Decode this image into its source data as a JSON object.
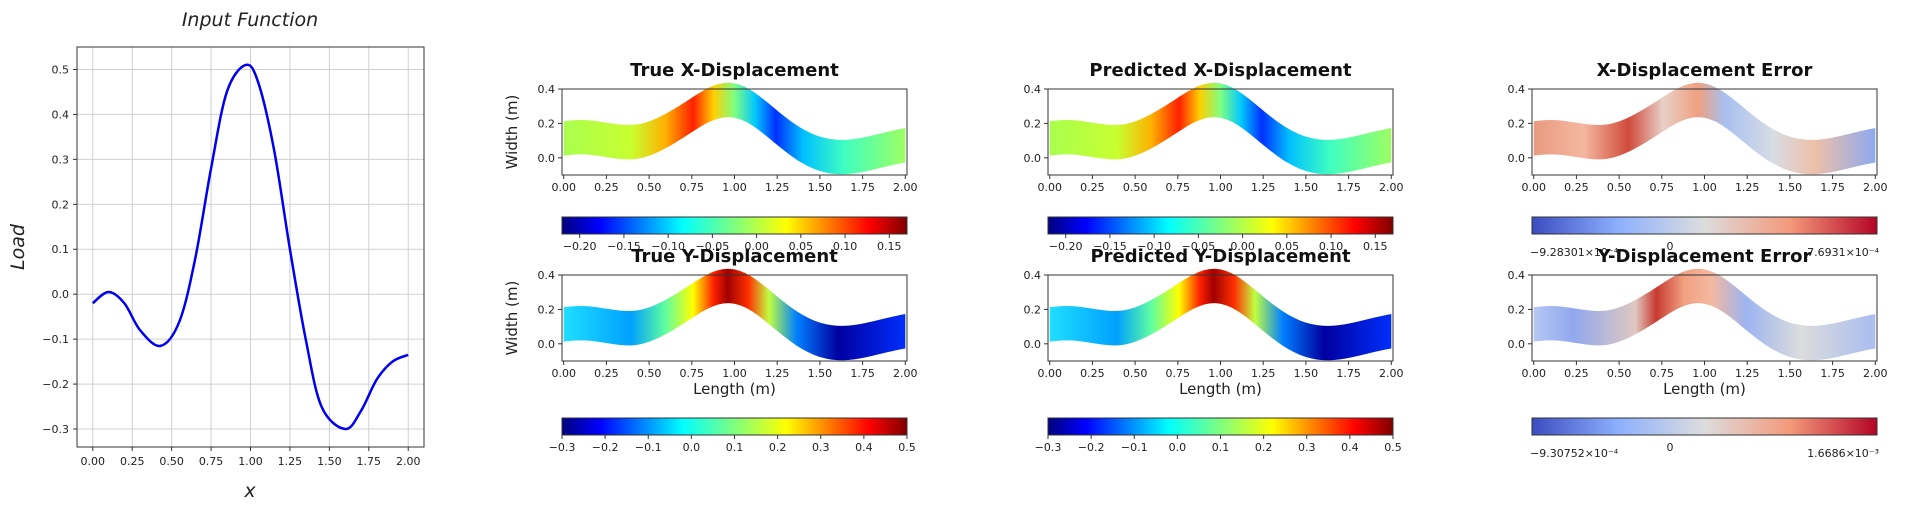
{
  "chart_data": [
    {
      "type": "line",
      "title": "Input Function",
      "xlabel": "x",
      "ylabel": "Load",
      "xlim": [
        -0.1,
        2.1
      ],
      "ylim": [
        -0.34,
        0.55
      ],
      "xticks": [
        "0.00",
        "0.25",
        "0.50",
        "0.75",
        "1.00",
        "1.25",
        "1.50",
        "1.75",
        "2.00"
      ],
      "yticks": [
        "0.5",
        "0.4",
        "0.3",
        "0.2",
        "0.1",
        "0.0",
        "−0.1",
        "−0.2",
        "−0.3"
      ],
      "grid": true,
      "color": "#0000ee",
      "x": [
        0.0,
        0.1,
        0.2,
        0.3,
        0.43,
        0.55,
        0.65,
        0.75,
        0.85,
        0.97,
        1.05,
        1.15,
        1.25,
        1.35,
        1.45,
        1.6,
        1.7,
        1.8,
        1.9,
        2.0
      ],
      "y": [
        -0.02,
        0.005,
        -0.02,
        -0.08,
        -0.115,
        -0.06,
        0.08,
        0.28,
        0.45,
        0.51,
        0.47,
        0.32,
        0.1,
        -0.1,
        -0.25,
        -0.3,
        -0.26,
        -0.19,
        -0.15,
        -0.135
      ]
    },
    {
      "type": "heatmap",
      "title": "True X-Displacement",
      "ylabel": "Width (m)",
      "xticks": [
        "0.00",
        "0.25",
        "0.50",
        "0.75",
        "1.00",
        "1.25",
        "1.50",
        "1.75",
        "2.00"
      ],
      "yticks": [
        "0.4",
        "0.2",
        "0.0"
      ],
      "colormap": "jet",
      "colorbar": {
        "min": -0.22,
        "max": 0.17,
        "ticks": [
          "−0.20",
          "−0.15",
          "−0.10",
          "−0.05",
          "0.00",
          "0.05",
          "0.10",
          "0.15"
        ]
      }
    },
    {
      "type": "heatmap",
      "title": "Predicted X-Displacement",
      "xticks": [
        "0.00",
        "0.25",
        "0.50",
        "0.75",
        "1.00",
        "1.25",
        "1.50",
        "1.75",
        "2.00"
      ],
      "yticks": [
        "0.4",
        "0.2",
        "0.0"
      ],
      "colormap": "jet",
      "colorbar": {
        "min": -0.22,
        "max": 0.17,
        "ticks": [
          "−0.20",
          "−0.15",
          "−0.10",
          "−0.05",
          "0.00",
          "0.05",
          "0.10",
          "0.15"
        ]
      }
    },
    {
      "type": "heatmap",
      "title": "X-Displacement Error",
      "xticks": [
        "0.00",
        "0.25",
        "0.50",
        "0.75",
        "1.00",
        "1.25",
        "1.50",
        "1.75",
        "2.00"
      ],
      "yticks": [
        "0.4",
        "0.2",
        "0.0"
      ],
      "colormap": "coolwarm",
      "colorbar": {
        "min_label": "−9.28301×10⁻⁴",
        "mid_label": "0",
        "max_label": "7.6931×10⁻⁴"
      }
    },
    {
      "type": "heatmap",
      "title": "True Y-Displacement",
      "xlabel": "Length (m)",
      "ylabel": "Width (m)",
      "xticks": [
        "0.00",
        "0.25",
        "0.50",
        "0.75",
        "1.00",
        "1.25",
        "1.50",
        "1.75",
        "2.00"
      ],
      "yticks": [
        "0.4",
        "0.2",
        "0.0"
      ],
      "colormap": "jet",
      "colorbar": {
        "min": -0.3,
        "max": 0.5,
        "ticks": [
          "−0.3",
          "−0.2",
          "−0.1",
          "0.0",
          "0.1",
          "0.2",
          "0.3",
          "0.4",
          "0.5"
        ]
      }
    },
    {
      "type": "heatmap",
      "title": "Predicted Y-Displacement",
      "xlabel": "Length (m)",
      "xticks": [
        "0.00",
        "0.25",
        "0.50",
        "0.75",
        "1.00",
        "1.25",
        "1.50",
        "1.75",
        "2.00"
      ],
      "yticks": [
        "0.4",
        "0.2",
        "0.0"
      ],
      "colormap": "jet",
      "colorbar": {
        "min": -0.3,
        "max": 0.5,
        "ticks": [
          "−0.3",
          "−0.2",
          "−0.1",
          "0.0",
          "0.1",
          "0.2",
          "0.3",
          "0.4",
          "0.5"
        ]
      }
    },
    {
      "type": "heatmap",
      "title": "Y-Displacement Error",
      "xlabel": "Length (m)",
      "xticks": [
        "0.00",
        "0.25",
        "0.50",
        "0.75",
        "1.00",
        "1.25",
        "1.50",
        "1.75",
        "2.00"
      ],
      "yticks": [
        "0.4",
        "0.2",
        "0.0"
      ],
      "colormap": "coolwarm",
      "colorbar": {
        "min_label": "−9.30752×10⁻⁴",
        "mid_label": "0",
        "max_label": "1.6686×10⁻³"
      }
    }
  ]
}
